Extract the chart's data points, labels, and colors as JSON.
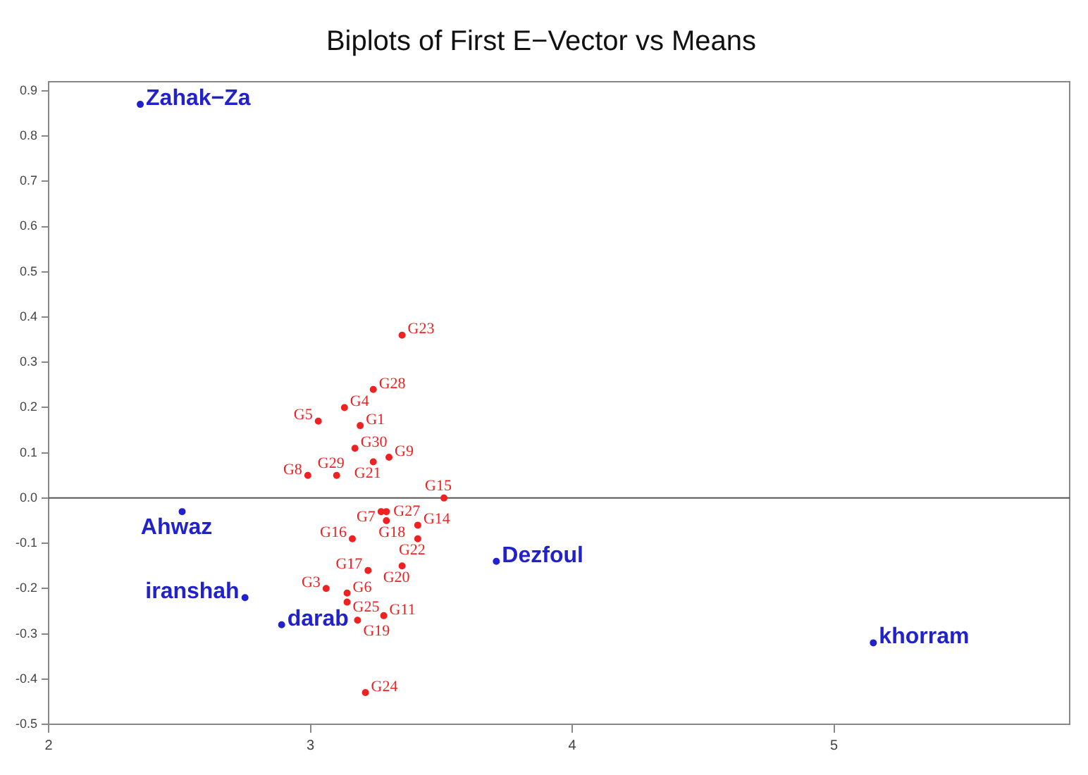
{
  "chart_data": {
    "type": "scatter",
    "title": "Biplots of First E−Vector vs Means",
    "xlim": [
      2,
      5.9
    ],
    "xticks": [
      2,
      3,
      4,
      5
    ],
    "ylim": [
      -0.5,
      0.92
    ],
    "yticks": [
      {
        "value": -0.5,
        "label": "-0.5"
      },
      {
        "value": -0.4,
        "label": "-0.4"
      },
      {
        "value": -0.3,
        "label": "-0.3"
      },
      {
        "value": -0.2,
        "label": "-0.2"
      },
      {
        "value": -0.1,
        "label": "-0.1"
      },
      {
        "value": 0,
        "label": "0.0"
      },
      {
        "value": 0.1,
        "label": "0.1"
      },
      {
        "value": 0.2,
        "label": "0.2"
      },
      {
        "value": 0.3,
        "label": "0.3"
      },
      {
        "value": 0.4,
        "label": "0.4"
      },
      {
        "value": 0.5,
        "label": "0.5"
      },
      {
        "value": 0.6,
        "label": "0.6"
      },
      {
        "value": 0.7,
        "label": "0.7"
      },
      {
        "value": 0.8,
        "label": "0.8"
      },
      {
        "value": 0.9,
        "label": "0.9"
      }
    ],
    "grid": false,
    "marker": "circle",
    "ref_lines": [
      {
        "axis": "y",
        "value": 0,
        "color": "#555555"
      }
    ],
    "series": [
      {
        "color": "#2222cc",
        "x": [
          2.35,
          2.51,
          2.75,
          2.89,
          3.71,
          5.15
        ],
        "values": [
          0.87,
          -0.03,
          -0.22,
          -0.28,
          -0.14,
          -0.32
        ],
        "value_labels": [
          "Zahak−Za",
          "Ahwaz",
          "iranshah",
          "darab",
          "Dezfoul",
          "khorram"
        ]
      },
      {
        "color": "#ee2222",
        "x": [
          3.35,
          3.24,
          3.13,
          3.03,
          3.19,
          3.17,
          3.3,
          3.24,
          2.99,
          3.1,
          3.51,
          3.27,
          3.29,
          3.29,
          3.41,
          3.41,
          3.16,
          3.35,
          3.22,
          3.06,
          3.14,
          3.14,
          3.18,
          3.28,
          3.21
        ],
        "values": [
          0.36,
          0.24,
          0.2,
          0.17,
          0.16,
          0.11,
          0.09,
          0.08,
          0.05,
          0.05,
          0,
          -0.03,
          -0.03,
          -0.05,
          -0.06,
          -0.09,
          -0.09,
          -0.15,
          -0.16,
          -0.2,
          -0.21,
          -0.23,
          -0.27,
          -0.26,
          -0.43
        ],
        "value_labels": [
          "G23",
          "G28",
          "G4",
          "G5",
          "G1",
          "G30",
          "G9",
          "G21",
          "G8",
          "G29",
          "G15",
          "G7",
          "G27",
          "G18",
          "G14",
          "G22",
          "G16",
          "G20",
          "G17",
          "G3",
          "G6",
          "G25",
          "G19",
          "G11",
          "G24"
        ]
      }
    ]
  }
}
